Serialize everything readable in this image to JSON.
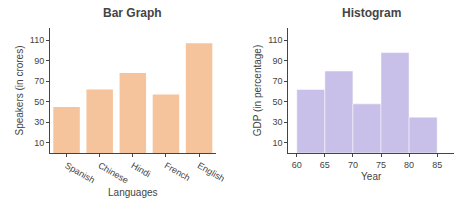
{
  "chart_data": [
    {
      "type": "bar",
      "title": "Bar Graph",
      "xlabel": "Languages",
      "ylabel": "Speakers (in crores)",
      "categories": [
        "Spanish",
        "Chinese",
        "Hindi",
        "French",
        "English"
      ],
      "values": [
        45,
        62,
        78,
        57,
        107
      ],
      "color": "#F5C49C",
      "ylim": [
        0,
        122
      ],
      "yticks": [
        10,
        30,
        50,
        70,
        90,
        110
      ],
      "grid": false
    },
    {
      "type": "histogram",
      "title": "Histogram",
      "xlabel": "Year",
      "ylabel": "GDP (in percentage)",
      "bins": [
        60,
        65,
        70,
        75,
        80,
        85
      ],
      "values": [
        62,
        80,
        48,
        98,
        35
      ],
      "color": "#C8C0E8",
      "xlim": [
        58.5,
        88
      ],
      "xticks": [
        60,
        65,
        70,
        75,
        80,
        85
      ],
      "ylim": [
        0,
        122
      ],
      "yticks": [
        10,
        30,
        50,
        70,
        90,
        110
      ],
      "grid": false
    }
  ]
}
